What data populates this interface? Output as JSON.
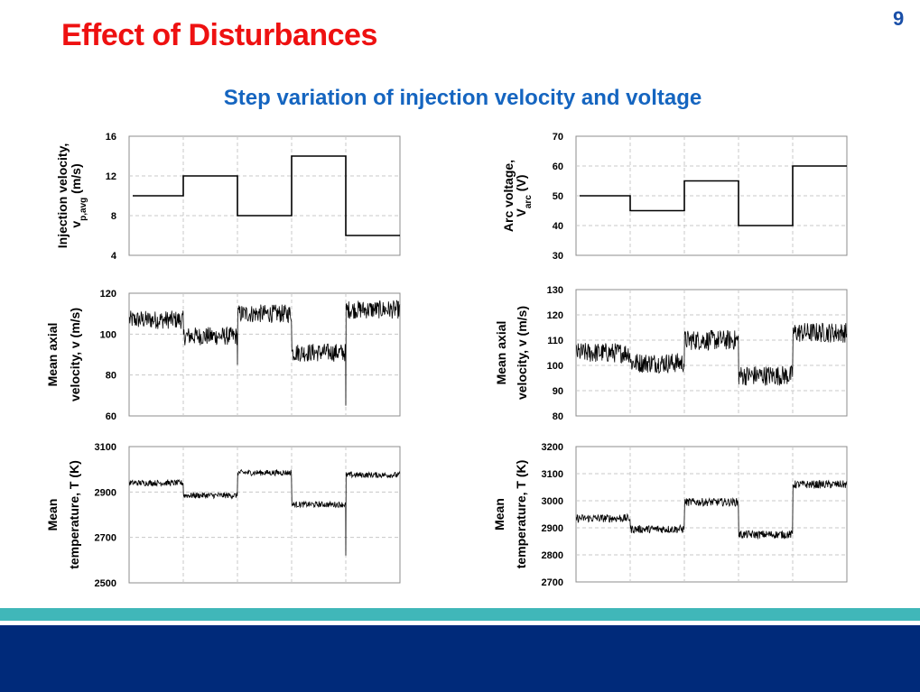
{
  "slide": {
    "title": "Effect of Disturbances",
    "page_number": "9",
    "subtitle": "Step variation of injection velocity and voltage"
  },
  "colors": {
    "title": "#ee1111",
    "subtitle": "#1565c0",
    "footer_teal": "#40b7b9",
    "footer_navy": "#002a7a"
  },
  "chart_data": [
    {
      "type": "line",
      "ylabel_main": "Injection velocity,",
      "ylabel_sym": "v",
      "ylabel_sub": "p,avg",
      "ylabel_unit": " (m/s)",
      "ylim": [
        4,
        16
      ],
      "yticks": [
        4,
        8,
        12,
        16
      ],
      "grid": true,
      "x_segments": 5,
      "series": [
        {
          "kind": "step",
          "values": [
            10,
            12,
            8,
            14,
            6
          ]
        }
      ]
    },
    {
      "type": "line",
      "ylabel_main": "Arc voltage,",
      "ylabel_sym": "V",
      "ylabel_sub": "arc",
      "ylabel_unit": " (V)",
      "ylim": [
        30,
        70
      ],
      "yticks": [
        30,
        40,
        50,
        60,
        70
      ],
      "grid": true,
      "x_segments": 5,
      "series": [
        {
          "kind": "step",
          "values": [
            50,
            45,
            55,
            40,
            60
          ]
        }
      ]
    },
    {
      "type": "line",
      "ylabel_main": "Mean axial",
      "ylabel_line2": "velocity, v (m/s)",
      "ylim": [
        60,
        120
      ],
      "yticks": [
        60,
        80,
        100,
        120
      ],
      "grid": true,
      "x_segments": 5,
      "series": [
        {
          "kind": "noisy",
          "means": [
            107,
            99,
            110,
            91,
            112
          ],
          "noise": 4.5,
          "spikes": [
            [
              2,
              85
            ],
            [
              4,
              65
            ]
          ]
        }
      ]
    },
    {
      "type": "line",
      "ylabel_main": "Mean axial",
      "ylabel_line2": "velocity, v (m/s)",
      "ylim": [
        80,
        130
      ],
      "yticks": [
        80,
        90,
        100,
        110,
        120,
        130
      ],
      "grid": true,
      "x_segments": 5,
      "series": [
        {
          "kind": "noisy",
          "means": [
            105,
            101,
            110,
            96,
            113
          ],
          "noise": 4,
          "spikes": []
        }
      ]
    },
    {
      "type": "line",
      "ylabel_main": "Mean",
      "ylabel_line2": "temperature, T (K)",
      "ylim": [
        2500,
        3100
      ],
      "yticks": [
        2500,
        2700,
        2900,
        3100
      ],
      "grid": true,
      "x_segments": 5,
      "series": [
        {
          "kind": "noisy",
          "means": [
            2940,
            2885,
            2985,
            2845,
            2975
          ],
          "noise": 13,
          "spikes": [
            [
              4,
              2620
            ]
          ]
        }
      ]
    },
    {
      "type": "line",
      "ylabel_main": "Mean",
      "ylabel_line2": "temperature, T (K)",
      "ylim": [
        2700,
        3200
      ],
      "yticks": [
        2700,
        2800,
        2900,
        3000,
        3100,
        3200
      ],
      "grid": true,
      "x_segments": 5,
      "series": [
        {
          "kind": "noisy",
          "means": [
            2935,
            2895,
            2995,
            2875,
            3060
          ],
          "noise": 15,
          "spikes": []
        }
      ]
    }
  ]
}
